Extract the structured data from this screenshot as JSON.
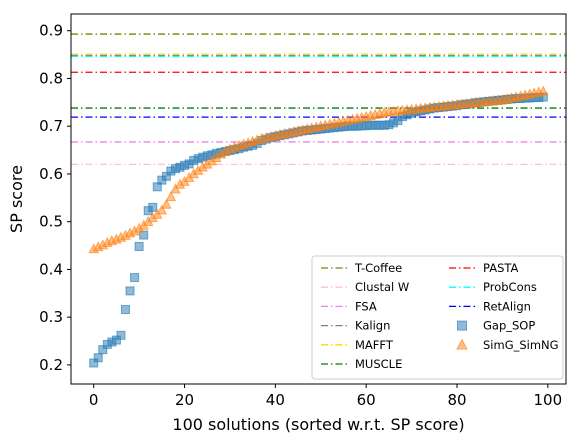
{
  "chart_data": {
    "type": "scatter",
    "title": "",
    "xlabel": "100 solutions (sorted w.r.t. SP score)",
    "ylabel": "SP score",
    "xlim": [
      -5,
      104
    ],
    "ylim": [
      0.16,
      0.935
    ],
    "xticks": [
      0,
      20,
      40,
      60,
      80,
      100
    ],
    "yticks": [
      0.2,
      0.3,
      0.4,
      0.5,
      0.6,
      0.7,
      0.8,
      0.9
    ],
    "xtick_labels": [
      "0",
      "20",
      "40",
      "60",
      "80",
      "100"
    ],
    "ytick_labels": [
      "0.2",
      "0.3",
      "0.4",
      "0.5",
      "0.6",
      "0.7",
      "0.8",
      "0.9"
    ],
    "grid": false,
    "legend_position": "lower-right",
    "legend_columns": 2,
    "reference_lines": [
      {
        "name": "T-Coffee",
        "value": 0.893,
        "color": "#808000"
      },
      {
        "name": "Clustal W",
        "value": 0.62,
        "color": "#ffc0cb"
      },
      {
        "name": "FSA",
        "value": 0.667,
        "color": "#ee82ee"
      },
      {
        "name": "Kalign",
        "value": 0.848,
        "color": "#808080"
      },
      {
        "name": "MAFFT",
        "value": 0.851,
        "color": "#ffd700"
      },
      {
        "name": "MUSCLE",
        "value": 0.738,
        "color": "#008000"
      },
      {
        "name": "PASTA",
        "value": 0.813,
        "color": "#ff0000"
      },
      {
        "name": "ProbCons",
        "value": 0.846,
        "color": "#00ffff"
      },
      {
        "name": "RetAlign",
        "value": 0.719,
        "color": "#0000ff"
      }
    ],
    "series": [
      {
        "name": "Gap_SOP",
        "marker": "square",
        "color": "#1f77b4",
        "x": [
          0,
          1,
          2,
          3,
          4,
          5,
          6,
          7,
          8,
          9,
          10,
          11,
          12,
          13,
          14,
          15,
          16,
          17,
          18,
          19,
          20,
          21,
          22,
          23,
          24,
          25,
          26,
          27,
          28,
          29,
          30,
          31,
          32,
          33,
          34,
          35,
          36,
          37,
          38,
          39,
          40,
          41,
          42,
          43,
          44,
          45,
          46,
          47,
          48,
          49,
          50,
          51,
          52,
          53,
          54,
          55,
          56,
          57,
          58,
          59,
          60,
          61,
          62,
          63,
          64,
          65,
          66,
          67,
          68,
          69,
          70,
          71,
          72,
          73,
          74,
          75,
          76,
          77,
          78,
          79,
          80,
          81,
          82,
          83,
          84,
          85,
          86,
          87,
          88,
          89,
          90,
          91,
          92,
          93,
          94,
          95,
          96,
          97,
          98,
          99
        ],
        "y": [
          0.204,
          0.215,
          0.232,
          0.243,
          0.248,
          0.252,
          0.262,
          0.316,
          0.355,
          0.383,
          0.448,
          0.472,
          0.523,
          0.53,
          0.573,
          0.587,
          0.595,
          0.606,
          0.611,
          0.614,
          0.618,
          0.621,
          0.628,
          0.632,
          0.635,
          0.638,
          0.64,
          0.643,
          0.645,
          0.647,
          0.649,
          0.651,
          0.653,
          0.656,
          0.658,
          0.66,
          0.664,
          0.67,
          0.673,
          0.676,
          0.678,
          0.68,
          0.682,
          0.684,
          0.686,
          0.688,
          0.69,
          0.691,
          0.692,
          0.693,
          0.694,
          0.695,
          0.696,
          0.697,
          0.698,
          0.699,
          0.7,
          0.7,
          0.7,
          0.701,
          0.701,
          0.702,
          0.702,
          0.702,
          0.702,
          0.703,
          0.707,
          0.712,
          0.72,
          0.724,
          0.727,
          0.73,
          0.732,
          0.734,
          0.736,
          0.738,
          0.739,
          0.74,
          0.741,
          0.742,
          0.743,
          0.745,
          0.746,
          0.747,
          0.749,
          0.75,
          0.751,
          0.752,
          0.753,
          0.754,
          0.755,
          0.756,
          0.757,
          0.758,
          0.758,
          0.759,
          0.759,
          0.76,
          0.76,
          0.761
        ]
      },
      {
        "name": "SimG_SimNG",
        "marker": "triangle",
        "color": "#ff7f0e",
        "x": [
          0,
          1,
          2,
          3,
          4,
          5,
          6,
          7,
          8,
          9,
          10,
          11,
          12,
          13,
          14,
          15,
          16,
          17,
          18,
          19,
          20,
          21,
          22,
          23,
          24,
          25,
          26,
          27,
          28,
          29,
          30,
          31,
          32,
          33,
          34,
          35,
          36,
          37,
          38,
          39,
          40,
          41,
          42,
          43,
          44,
          45,
          46,
          47,
          48,
          49,
          50,
          51,
          52,
          53,
          54,
          55,
          56,
          57,
          58,
          59,
          60,
          61,
          62,
          63,
          64,
          65,
          66,
          67,
          68,
          69,
          70,
          71,
          72,
          73,
          74,
          75,
          76,
          77,
          78,
          79,
          80,
          81,
          82,
          83,
          84,
          85,
          86,
          87,
          88,
          89,
          90,
          91,
          92,
          93,
          94,
          95,
          96,
          97,
          98,
          99
        ],
        "y": [
          0.443,
          0.447,
          0.451,
          0.456,
          0.46,
          0.463,
          0.467,
          0.471,
          0.476,
          0.48,
          0.486,
          0.492,
          0.5,
          0.508,
          0.515,
          0.524,
          0.536,
          0.552,
          0.568,
          0.578,
          0.584,
          0.592,
          0.6,
          0.607,
          0.614,
          0.62,
          0.627,
          0.634,
          0.641,
          0.647,
          0.652,
          0.656,
          0.659,
          0.662,
          0.665,
          0.668,
          0.671,
          0.674,
          0.676,
          0.678,
          0.68,
          0.682,
          0.684,
          0.686,
          0.688,
          0.69,
          0.692,
          0.694,
          0.696,
          0.698,
          0.7,
          0.702,
          0.704,
          0.706,
          0.708,
          0.71,
          0.712,
          0.714,
          0.716,
          0.718,
          0.72,
          0.722,
          0.724,
          0.726,
          0.728,
          0.73,
          0.731,
          0.732,
          0.733,
          0.734,
          0.735,
          0.736,
          0.737,
          0.738,
          0.739,
          0.74,
          0.741,
          0.742,
          0.743,
          0.744,
          0.745,
          0.746,
          0.747,
          0.748,
          0.749,
          0.75,
          0.751,
          0.752,
          0.753,
          0.754,
          0.755,
          0.757,
          0.759,
          0.761,
          0.763,
          0.765,
          0.767,
          0.769,
          0.771,
          0.773
        ]
      }
    ]
  }
}
